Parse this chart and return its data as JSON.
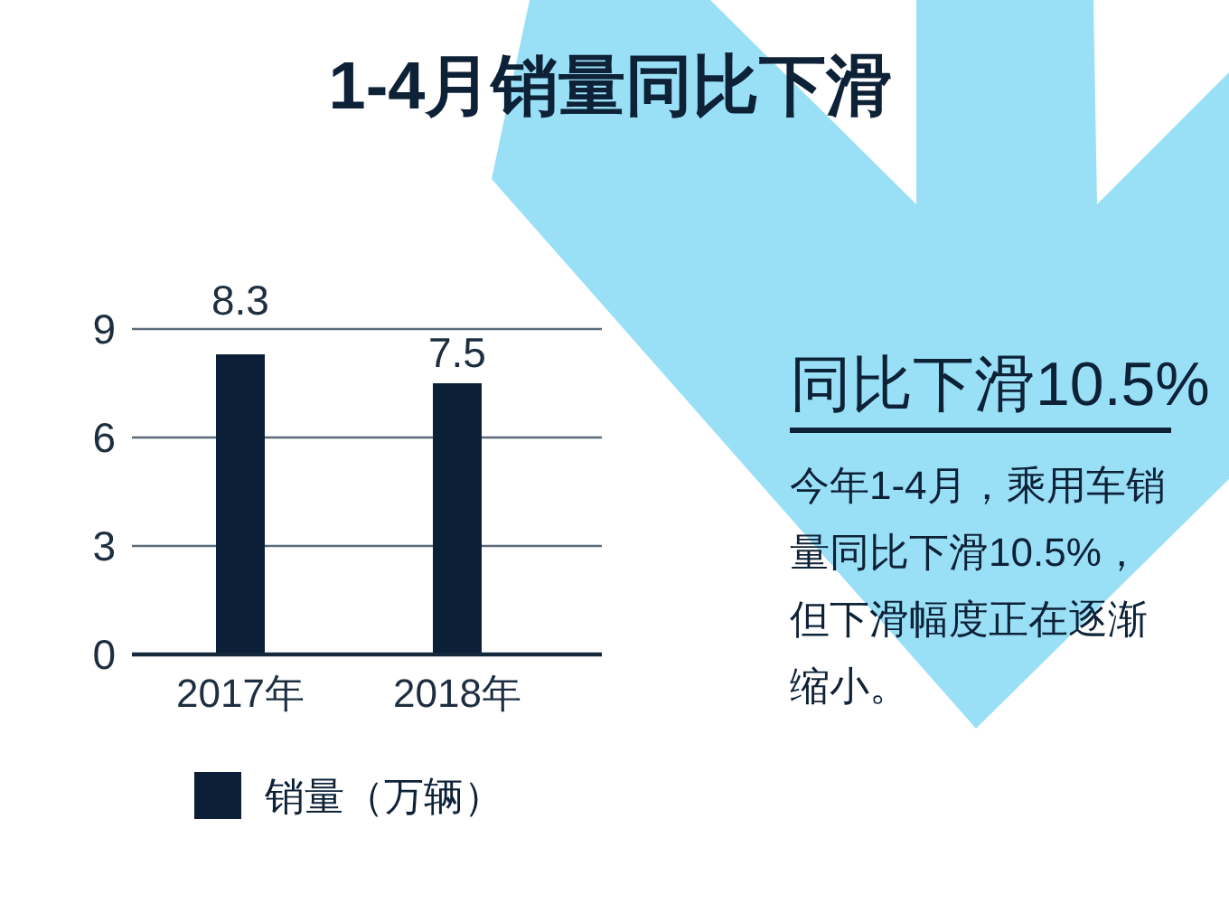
{
  "chart_data": {
    "type": "bar",
    "title": "1-4月销量同比下滑",
    "categories": [
      "2017年",
      "2018年"
    ],
    "series": [
      {
        "name": "销量（万辆）",
        "color": "#0b1f36",
        "values": [
          8.3,
          7.5
        ]
      }
    ],
    "ylim": [
      0,
      9
    ],
    "yticks": [
      0,
      3,
      6,
      9
    ],
    "grid": "y",
    "data_labels": true,
    "legend": "bottom",
    "annotations": [
      "同比下滑10.5%",
      "今年1-4月，乘用车销量同比下滑10.5%，但下滑幅度正在逐渐缩小。"
    ]
  }
}
